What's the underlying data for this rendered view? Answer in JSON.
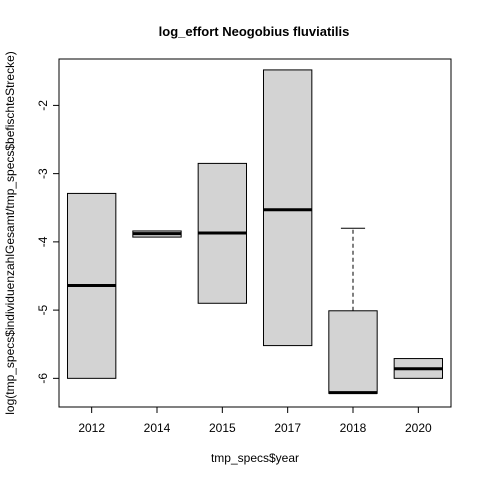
{
  "chart_data": {
    "type": "boxplot",
    "title": "log_effort Neogobius fluviatilis",
    "xlabel": "tmp_specs$year",
    "ylabel": "log(tmp_specs$individuenzahlGesamt/tmp_specs$befischteStrecke)",
    "categories": [
      "2012",
      "2014",
      "2015",
      "2017",
      "2018",
      "2020"
    ],
    "ylim": [
      -6.42,
      -1.32
    ],
    "yticks": [
      -6,
      -5,
      -4,
      -3,
      -2
    ],
    "ytick_labels": [
      "-6",
      "-5",
      "-4",
      "-3",
      "-2"
    ],
    "boxes": [
      {
        "category": "2012",
        "whisker_low": -6.0,
        "q1": -6.0,
        "median": -4.64,
        "q3": -3.29,
        "whisker_high": -3.29
      },
      {
        "category": "2014",
        "whisker_low": -3.93,
        "q1": -3.93,
        "median": -3.88,
        "q3": -3.84,
        "whisker_high": -3.84
      },
      {
        "category": "2015",
        "whisker_low": -4.9,
        "q1": -4.9,
        "median": -3.87,
        "q3": -2.85,
        "whisker_high": -2.85
      },
      {
        "category": "2017",
        "whisker_low": -5.52,
        "q1": -5.52,
        "median": -3.53,
        "q3": -1.48,
        "whisker_high": -1.48
      },
      {
        "category": "2018",
        "whisker_low": -6.22,
        "q1": -6.22,
        "median": -6.21,
        "q3": -5.01,
        "whisker_high": -3.8
      },
      {
        "category": "2020",
        "whisker_low": -6.0,
        "q1": -6.0,
        "median": -5.86,
        "q3": -5.71,
        "whisker_high": -5.71
      }
    ],
    "box_fill": "#d3d3d3",
    "line_color": "#000000"
  }
}
